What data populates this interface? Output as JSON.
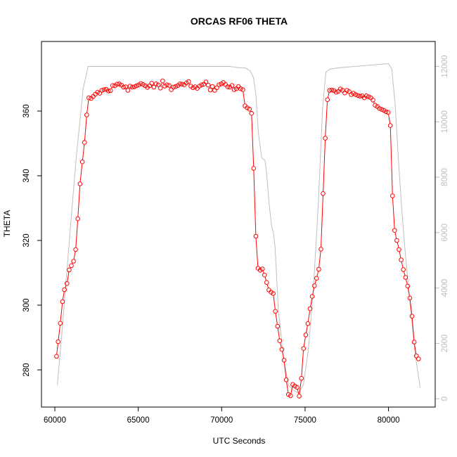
{
  "chart_data": {
    "type": "line",
    "title": "ORCAS RF06 THETA",
    "xlabel": "UTC Seconds",
    "ylabel": "THETA",
    "xlim": [
      59200,
      82800
    ],
    "ylim": [
      268.5,
      381.5
    ],
    "y2lim": [
      -300,
      12900
    ],
    "x_ticks": [
      "60000",
      "65000",
      "70000",
      "75000",
      "80000"
    ],
    "y_ticks": [
      "280",
      "300",
      "320",
      "340",
      "360"
    ],
    "y2_ticks": [
      "0",
      "2000",
      "4000",
      "6000",
      "8000",
      "10000",
      "12000"
    ],
    "grid": false,
    "series": [
      {
        "color": "#ff0000",
        "marker": "open-circle",
        "axis": "left",
        "x": [
          60100,
          60200,
          60330,
          60460,
          60580,
          60730,
          60860,
          60990,
          61120,
          61250,
          61380,
          61510,
          61650,
          61780,
          61910,
          62040,
          62170,
          62300,
          62430,
          62560,
          62690,
          62820,
          62950,
          63080,
          63210,
          63340,
          63470,
          63600,
          63730,
          63860,
          63990,
          64120,
          64250,
          64380,
          64510,
          64640,
          64770,
          64900,
          65030,
          65160,
          65290,
          65420,
          65550,
          65680,
          65810,
          65940,
          66070,
          66200,
          66330,
          66460,
          66590,
          66720,
          66850,
          66980,
          67110,
          67240,
          67370,
          67500,
          67630,
          67760,
          67890,
          68020,
          68150,
          68280,
          68410,
          68540,
          68670,
          68800,
          68930,
          69060,
          69190,
          69320,
          69450,
          69580,
          69710,
          69840,
          69970,
          70100,
          70230,
          70360,
          70490,
          70620,
          70750,
          70880,
          71010,
          71140,
          71270,
          71400,
          71530,
          71660,
          71790,
          71920,
          72050,
          72180,
          72310,
          72440,
          72570,
          72700,
          72830,
          72960,
          73090,
          73220,
          73350,
          73480,
          73610,
          73740,
          73870,
          74000,
          74130,
          74260,
          74390,
          74520,
          74650,
          74780,
          74910,
          75040,
          75170,
          75300,
          75430,
          75560,
          75690,
          75820,
          75950,
          76080,
          76210,
          76340,
          76470,
          76600,
          76730,
          76860,
          76990,
          77120,
          77250,
          77380,
          77510,
          77640,
          77770,
          77900,
          78030,
          78160,
          78290,
          78420,
          78550,
          78680,
          78810,
          78940,
          79070,
          79200,
          79330,
          79460,
          79590,
          79720,
          79850,
          79980,
          80110,
          80240,
          80370,
          80500,
          80630,
          80760,
          80890,
          81020,
          81150,
          81280,
          81410,
          81540,
          81670,
          81800
        ],
        "y": [
          284.2,
          288.7,
          294.4,
          301.1,
          304.8,
          306.7,
          310.9,
          312.2,
          313.6,
          317.2,
          326.7,
          337.5,
          344.3,
          350.3,
          358.8,
          364.1,
          363.9,
          364.5,
          365.2,
          365.8,
          365.5,
          366.4,
          366.6,
          366.7,
          366.2,
          366.3,
          367.9,
          367.8,
          368.3,
          368.4,
          368.0,
          367.4,
          367.5,
          366.4,
          367.7,
          367.4,
          367.5,
          367.8,
          368.1,
          368.5,
          368.2,
          367.8,
          367.3,
          367.8,
          368.6,
          367.4,
          368.4,
          368.1,
          367.1,
          369.3,
          367.7,
          368.1,
          367.9,
          366.6,
          367.4,
          367.6,
          367.9,
          368.4,
          368.3,
          368.1,
          368.7,
          369.1,
          367.7,
          367.2,
          367.5,
          367.0,
          367.7,
          368.1,
          368.3,
          369.0,
          368.0,
          366.5,
          367.6,
          366.4,
          367.2,
          368.1,
          368.4,
          368.8,
          368.2,
          367.5,
          367.4,
          367.9,
          366.6,
          366.9,
          367.6,
          366.9,
          366.6,
          361.6,
          361.0,
          360.6,
          359.3,
          342.3,
          321.3,
          311.4,
          310.8,
          311.2,
          309.3,
          307.0,
          304.7,
          304.0,
          303.6,
          298.1,
          293.5,
          289.0,
          286.3,
          283.0,
          276.9,
          272.4,
          272.0,
          275.5,
          275.0,
          274.6,
          271.9,
          277.4,
          286.6,
          290.8,
          294.3,
          298.9,
          302.7,
          306.0,
          308.3,
          311.1,
          317.3,
          334.5,
          351.6,
          363.5,
          366.4,
          366.5,
          366.3,
          365.8,
          366.1,
          366.8,
          366.4,
          365.6,
          366.4,
          366.0,
          365.1,
          365.5,
          365.1,
          364.8,
          364.6,
          364.7,
          364.1,
          364.7,
          364.4,
          364.1,
          363.4,
          361.8,
          361.4,
          360.8,
          360.5,
          360.2,
          359.8,
          359.6,
          355.5,
          333.8,
          323.1,
          320.0,
          317.2,
          314.0,
          311.0,
          308.6,
          305.9,
          302.2,
          296.6,
          288.6,
          284.3,
          283.4
        ]
      },
      {
        "color": "#bebebe",
        "axis": "right",
        "x": [
          60150,
          60400,
          60800,
          61100,
          61300,
          61500,
          61700,
          62000,
          62300,
          63000,
          64000,
          65000,
          66000,
          67000,
          68000,
          69000,
          70000,
          70500,
          71000,
          71400,
          71700,
          71900,
          72050,
          72200,
          72400,
          72600,
          72700,
          72850,
          73000,
          73100,
          73200,
          73400,
          73700,
          74000,
          74300,
          74600,
          74900,
          75200,
          75500,
          75800,
          76050,
          76250,
          76500,
          77000,
          78000,
          79000,
          80000,
          80200,
          80400,
          80600,
          80800,
          81000,
          81300,
          81600,
          81900
        ],
        "y": [
          500,
          2200,
          5200,
          7400,
          8800,
          10000,
          11200,
          12000,
          12000,
          12000,
          12000,
          12000,
          12000,
          12000,
          12000,
          12000,
          12000,
          12000,
          11950,
          11950,
          11850,
          11600,
          11000,
          9600,
          8700,
          8600,
          8100,
          7000,
          6200,
          6000,
          5500,
          3200,
          1500,
          500,
          300,
          200,
          500,
          1800,
          4000,
          7100,
          10500,
          11800,
          11900,
          11950,
          12000,
          12050,
          12100,
          11900,
          10600,
          8600,
          6800,
          5300,
          3400,
          1600,
          400
        ]
      }
    ]
  }
}
